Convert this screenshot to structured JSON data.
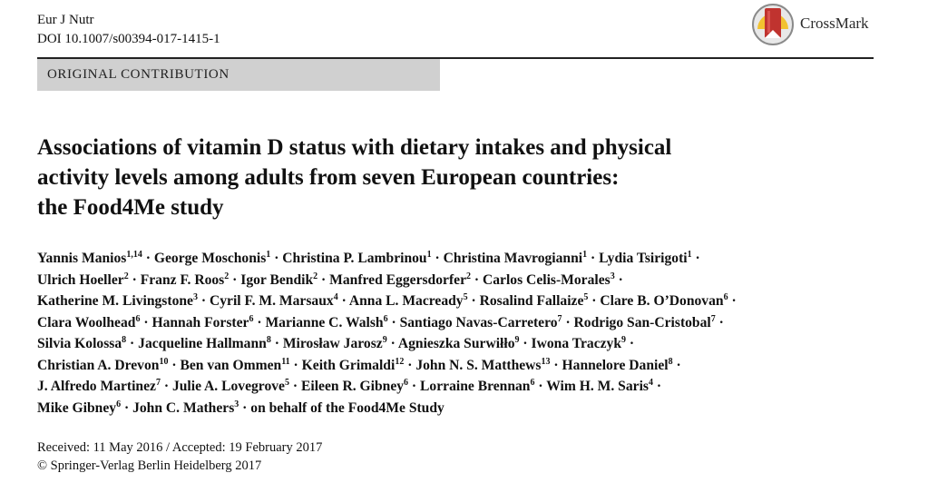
{
  "header": {
    "journal": "Eur J Nutr",
    "doi": "DOI 10.1007/s00394-017-1415-1",
    "crossmark_label": "CrossMark",
    "section": "ORIGINAL CONTRIBUTION"
  },
  "title": {
    "line1": "Associations of vitamin D status with dietary intakes and physical",
    "line2": "activity levels among adults from seven European countries:",
    "line3": "the Food4Me study"
  },
  "authors": {
    "separator": " · ",
    "lines": [
      [
        {
          "n": "Yannis Manios",
          "s": "1,14"
        },
        {
          "n": "George Moschonis",
          "s": "1"
        },
        {
          "n": "Christina P. Lambrinou",
          "s": "1"
        },
        {
          "n": "Christina Mavrogianni",
          "s": "1"
        },
        {
          "n": "Lydia Tsirigoti",
          "s": "1"
        }
      ],
      [
        {
          "n": "Ulrich Hoeller",
          "s": "2"
        },
        {
          "n": "Franz F. Roos",
          "s": "2"
        },
        {
          "n": "Igor Bendik",
          "s": "2"
        },
        {
          "n": "Manfred Eggersdorfer",
          "s": "2"
        },
        {
          "n": "Carlos Celis-Morales",
          "s": "3"
        }
      ],
      [
        {
          "n": "Katherine M. Livingstone",
          "s": "3"
        },
        {
          "n": "Cyril F. M. Marsaux",
          "s": "4"
        },
        {
          "n": "Anna L. Macready",
          "s": "5"
        },
        {
          "n": "Rosalind Fallaize",
          "s": "5"
        },
        {
          "n": "Clare B. O’Donovan",
          "s": "6"
        }
      ],
      [
        {
          "n": "Clara Woolhead",
          "s": "6"
        },
        {
          "n": "Hannah Forster",
          "s": "6"
        },
        {
          "n": "Marianne C. Walsh",
          "s": "6"
        },
        {
          "n": "Santiago Navas-Carretero",
          "s": "7"
        },
        {
          "n": "Rodrigo San-Cristobal",
          "s": "7"
        }
      ],
      [
        {
          "n": "Silvia Kolossa",
          "s": "8"
        },
        {
          "n": "Jacqueline Hallmann",
          "s": "8"
        },
        {
          "n": "Mirosław Jarosz",
          "s": "9"
        },
        {
          "n": "Agnieszka Surwiłło",
          "s": "9"
        },
        {
          "n": "Iwona Traczyk",
          "s": "9"
        }
      ],
      [
        {
          "n": "Christian A. Drevon",
          "s": "10"
        },
        {
          "n": "Ben van Ommen",
          "s": "11"
        },
        {
          "n": "Keith Grimaldi",
          "s": "12"
        },
        {
          "n": "John N. S. Matthews",
          "s": "13"
        },
        {
          "n": "Hannelore Daniel",
          "s": "8"
        }
      ],
      [
        {
          "n": "J. Alfredo Martinez",
          "s": "7"
        },
        {
          "n": "Julie A. Lovegrove",
          "s": "5"
        },
        {
          "n": "Eileen R. Gibney",
          "s": "6"
        },
        {
          "n": "Lorraine Brennan",
          "s": "6"
        },
        {
          "n": "Wim H. M. Saris",
          "s": "4"
        }
      ],
      [
        {
          "n": "Mike Gibney",
          "s": "6"
        },
        {
          "n": "John C. Mathers",
          "s": "3"
        },
        {
          "n": "on behalf of the Food4Me Study",
          "s": ""
        }
      ]
    ],
    "line_ends": [
      " ·",
      " ·",
      " ·",
      " ·",
      " ·",
      " ·",
      " ·",
      ""
    ]
  },
  "dates": {
    "received": "Received: 11 May 2016 / Accepted: 19 February 2017",
    "copyright": "© Springer-Verlag Berlin Heidelberg 2017"
  },
  "colors": {
    "section_band": "#d0d0d0",
    "crossmark_red": "#c0332f",
    "crossmark_yellow": "#f2c230",
    "crossmark_gray": "#8a8a8a"
  }
}
